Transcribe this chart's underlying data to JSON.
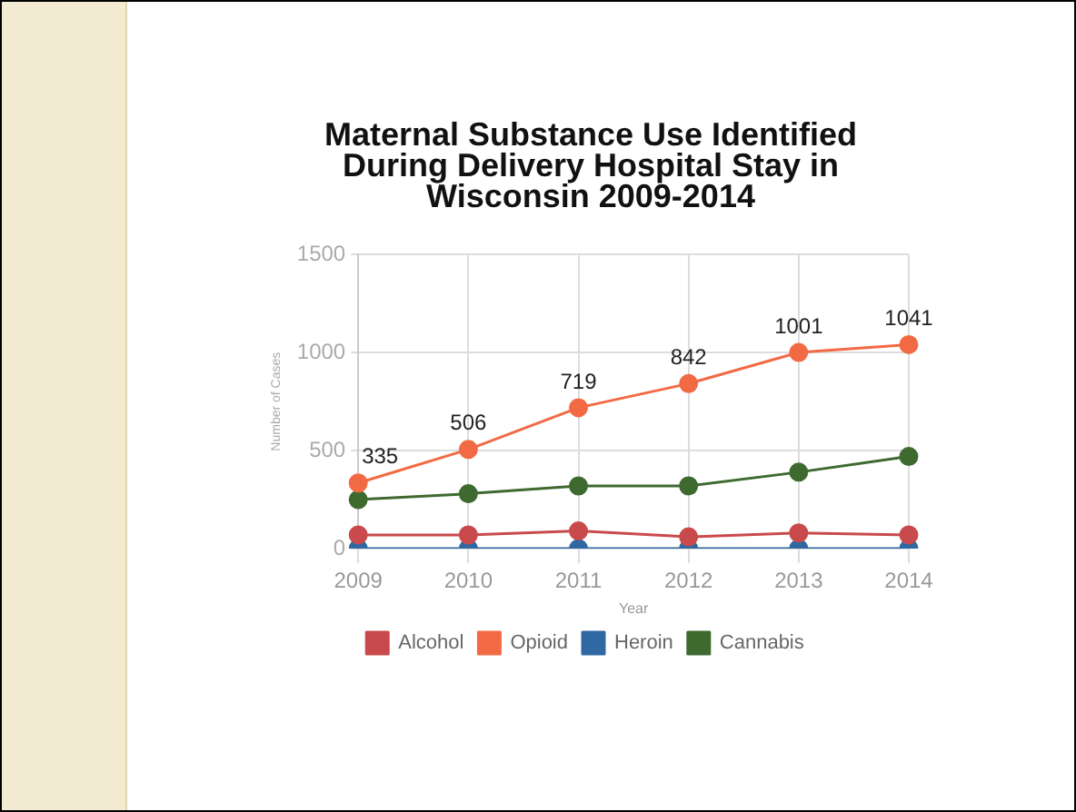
{
  "chart_data": {
    "type": "line",
    "title": "Maternal Substance Use Identified During Delivery Hospital Stay in Wisconsin 2009-2014",
    "xlabel": "Year",
    "ylabel": "Number of Cases",
    "categories": [
      "2009",
      "2010",
      "2011",
      "2012",
      "2013",
      "2014"
    ],
    "series": [
      {
        "name": "Alcohol",
        "color": "#c94a4c",
        "values": [
          70,
          70,
          90,
          60,
          80,
          70
        ]
      },
      {
        "name": "Opioid",
        "color": "#f26a44",
        "values": [
          335,
          506,
          719,
          842,
          1001,
          1041
        ],
        "value_labels": [
          "335",
          "506",
          "719",
          "842",
          "1001",
          "1041"
        ]
      },
      {
        "name": "Heroin",
        "color": "#2f68a3",
        "values": [
          0,
          0,
          0,
          0,
          0,
          0
        ]
      },
      {
        "name": "Cannabis",
        "color": "#3e6a30",
        "values": [
          250,
          280,
          320,
          320,
          390,
          470
        ]
      }
    ],
    "ylim": [
      0,
      1500
    ],
    "yticks": [
      0,
      500,
      1000,
      1500
    ],
    "grid": true,
    "legend": "bottom",
    "marker": "circle",
    "line_style": "solid"
  }
}
